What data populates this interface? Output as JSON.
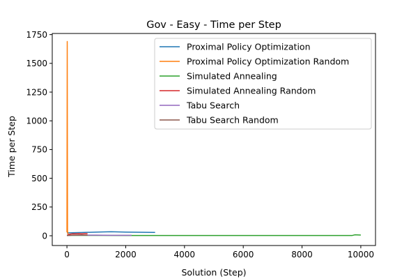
{
  "chart_data": {
    "type": "line",
    "title": "Gov - Easy - Time per Step",
    "xlabel": "Solution (Step)",
    "ylabel": "Time per Step",
    "xlim": [
      -500,
      10500
    ],
    "ylim": [
      -85,
      1760
    ],
    "xticks": [
      {
        "value": 0,
        "label": "0"
      },
      {
        "value": 2000,
        "label": "2000"
      },
      {
        "value": 4000,
        "label": "4000"
      },
      {
        "value": 6000,
        "label": "6000"
      },
      {
        "value": 8000,
        "label": "8000"
      },
      {
        "value": 10000,
        "label": "10000"
      }
    ],
    "yticks": [
      {
        "value": 0,
        "label": "0"
      },
      {
        "value": 250,
        "label": "250"
      },
      {
        "value": 500,
        "label": "500"
      },
      {
        "value": 750,
        "label": "750"
      },
      {
        "value": 1000,
        "label": "1000"
      },
      {
        "value": 1250,
        "label": "1250"
      },
      {
        "value": 1500,
        "label": "1500"
      },
      {
        "value": 1750,
        "label": "1750"
      }
    ],
    "grid": false,
    "legend_position": "top-right",
    "series": [
      {
        "name": "Proximal Policy Optimization",
        "color": "#1f77b4",
        "x": [
          0,
          100,
          500,
          1000,
          1500,
          2000,
          2500,
          3000
        ],
        "y": [
          25,
          26,
          28,
          32,
          35,
          32,
          30,
          29
        ]
      },
      {
        "name": "Proximal Policy Optimization Random",
        "color": "#ff7f0e",
        "x": [
          0,
          10,
          20,
          30,
          50,
          100
        ],
        "y": [
          30,
          1690,
          40,
          20,
          10,
          10
        ]
      },
      {
        "name": "Simulated Annealing",
        "color": "#2ca02c",
        "x": [
          0,
          1000,
          2000,
          3000,
          4000,
          5000,
          6000,
          7000,
          8000,
          9000,
          9700,
          9800,
          10000
        ],
        "y": [
          3,
          3,
          2,
          2,
          2,
          2,
          2,
          2,
          2,
          2,
          2,
          8,
          6
        ]
      },
      {
        "name": "Simulated Annealing Random",
        "color": "#d62728",
        "x": [
          0,
          100,
          200,
          300,
          400,
          500,
          600,
          700
        ],
        "y": [
          3,
          14,
          17,
          17,
          18,
          17,
          18,
          18
        ]
      },
      {
        "name": "Tabu Search",
        "color": "#9467bd",
        "x": [
          0,
          100,
          500,
          1000,
          1500,
          2000,
          2200
        ],
        "y": [
          3,
          4,
          5,
          5,
          4,
          4,
          4
        ]
      },
      {
        "name": "Tabu Search Random",
        "color": "#8c564b",
        "x": [
          0,
          100,
          200,
          300,
          400,
          500,
          600,
          700
        ],
        "y": [
          2,
          4,
          5,
          5,
          6,
          6,
          5,
          5
        ]
      }
    ]
  }
}
